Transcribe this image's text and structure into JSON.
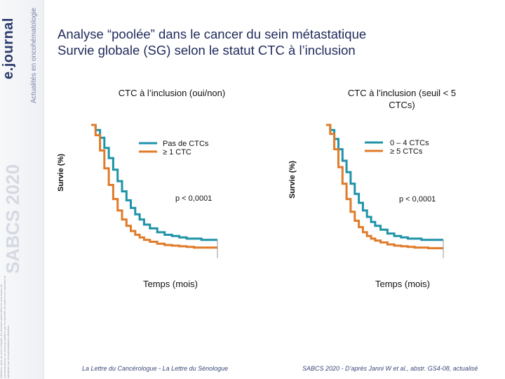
{
  "branding": {
    "logo": "e.journal",
    "tagline": "Actualités en oncohématologie",
    "congress": "SABCS 2020",
    "disclaimer": "Attention, dans un souci d'équité, les données présentées ici sont issues de communications, ne sont pas validées par les autorités de santé et ne sauraient se substituer aux recommandations officielles."
  },
  "title_line1": "Analyse “poolée” dans le cancer du sein métastatique",
  "title_line2": "Survie globale (SG) selon le statut CTC à l’inclusion",
  "footer": {
    "left": "La Lettre du Cancérologue - La Lettre du Sénologue",
    "right": "SABCS 2020 - D’après Janni W et al., abstr. GS4-08, actualisé"
  },
  "colors": {
    "teal": "#1f93a8",
    "orange": "#e07b2a",
    "axis": "#999999"
  },
  "chart_data": [
    {
      "type": "line",
      "title": "CTC à l’inclusion (oui/non)",
      "xlabel": "Temps (mois)",
      "ylabel": "Survie (%)",
      "ylim": [
        0,
        1
      ],
      "annotation": "p < 0,0001",
      "series": [
        {
          "name": "Pas de CTCs",
          "color": "#1f93a8",
          "x": [
            0,
            3,
            6,
            9,
            12,
            15,
            18,
            21,
            24,
            27,
            30,
            33,
            36,
            40,
            45,
            50,
            55,
            60,
            65,
            70,
            75,
            80,
            85
          ],
          "y": [
            1.0,
            0.96,
            0.9,
            0.82,
            0.74,
            0.65,
            0.56,
            0.48,
            0.41,
            0.35,
            0.3,
            0.26,
            0.22,
            0.19,
            0.16,
            0.14,
            0.13,
            0.12,
            0.11,
            0.11,
            0.1,
            0.1,
            0.1
          ]
        },
        {
          "name": "≥ 1 CTC",
          "color": "#e07b2a",
          "x": [
            0,
            3,
            6,
            9,
            12,
            15,
            18,
            21,
            24,
            27,
            30,
            33,
            36,
            40,
            45,
            50,
            55,
            60,
            65,
            70,
            75,
            80,
            85
          ],
          "y": [
            1.0,
            0.92,
            0.8,
            0.66,
            0.53,
            0.42,
            0.33,
            0.26,
            0.21,
            0.17,
            0.14,
            0.12,
            0.1,
            0.085,
            0.07,
            0.06,
            0.055,
            0.05,
            0.045,
            0.04,
            0.04,
            0.04,
            0.04
          ]
        }
      ]
    },
    {
      "type": "line",
      "title": "CTC à l’inclusion (seuil < 5 CTCs)",
      "xlabel": "Temps (mois)",
      "ylabel": "Survie (%)",
      "ylim": [
        0,
        1
      ],
      "annotation": "p < 0,0001",
      "series": [
        {
          "name": "0 – 4 CTCs",
          "color": "#1f93a8",
          "x": [
            0,
            3,
            6,
            9,
            12,
            15,
            18,
            21,
            24,
            27,
            30,
            33,
            36,
            40,
            45,
            50,
            55,
            60,
            65,
            70,
            75,
            80,
            85
          ],
          "y": [
            1.0,
            0.96,
            0.89,
            0.81,
            0.72,
            0.63,
            0.54,
            0.46,
            0.39,
            0.33,
            0.28,
            0.24,
            0.21,
            0.18,
            0.15,
            0.13,
            0.12,
            0.11,
            0.11,
            0.1,
            0.1,
            0.1,
            0.1
          ]
        },
        {
          "name": "≥ 5 CTCs",
          "color": "#e07b2a",
          "x": [
            0,
            3,
            6,
            9,
            12,
            15,
            18,
            21,
            24,
            27,
            30,
            33,
            36,
            40,
            45,
            50,
            55,
            60,
            65,
            70,
            75,
            80,
            85
          ],
          "y": [
            1.0,
            0.93,
            0.81,
            0.67,
            0.54,
            0.42,
            0.32,
            0.25,
            0.2,
            0.16,
            0.13,
            0.11,
            0.095,
            0.08,
            0.065,
            0.055,
            0.05,
            0.045,
            0.04,
            0.04,
            0.035,
            0.035,
            0.035
          ]
        }
      ]
    }
  ]
}
